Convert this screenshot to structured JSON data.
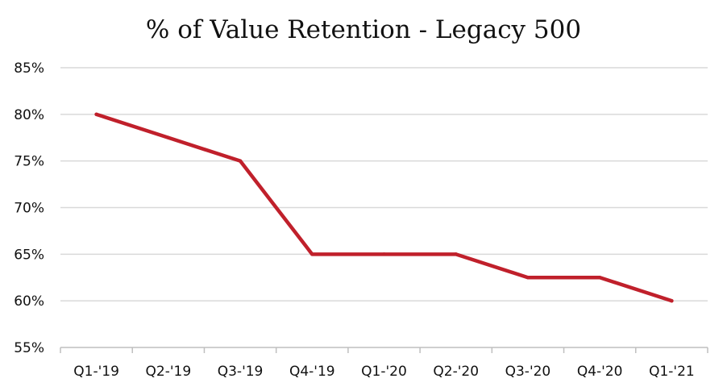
{
  "chart_data": {
    "type": "line",
    "title": "% of Value Retention - Legacy 500",
    "xlabel": "",
    "ylabel": "",
    "categories": [
      "Q1-'19",
      "Q2-'19",
      "Q3-'19",
      "Q4-'19",
      "Q1-'20",
      "Q2-'20",
      "Q3-'20",
      "Q4-'20",
      "Q1-'21"
    ],
    "series": [
      {
        "values": [
          80,
          77.5,
          75,
          65,
          65,
          65,
          62.5,
          62.5,
          60
        ],
        "color": "#c0202b"
      }
    ],
    "ylim": [
      55,
      85
    ],
    "yticks": [
      55,
      60,
      65,
      70,
      75,
      80,
      85
    ],
    "ytick_labels": [
      "55%",
      "60%",
      "65%",
      "70%",
      "75%",
      "80%",
      "85%"
    ],
    "grid": true,
    "legend": "none"
  }
}
